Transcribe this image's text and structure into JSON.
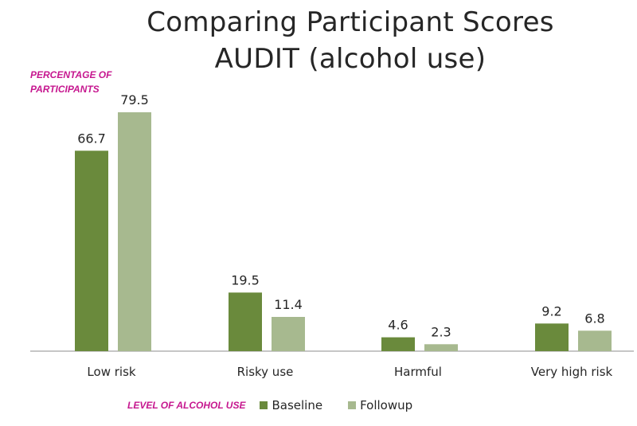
{
  "chart_data": {
    "type": "bar",
    "title_line1": "Comparing Participant Scores",
    "title_line2": "AUDIT (alcohol use)",
    "ylabel": "PERCENTAGE OF PARTICIPANTS",
    "xlabel": "LEVEL OF ALCOHOL USE",
    "categories": [
      "Low risk",
      "Risky use",
      "Harmful",
      "Very high risk"
    ],
    "series": [
      {
        "name": "Baseline",
        "color": "#6a8a3c",
        "values": [
          66.7,
          19.5,
          4.6,
          9.2
        ],
        "labels": [
          "66.7",
          "19.5",
          "4.6",
          "9.2"
        ]
      },
      {
        "name": "Followup",
        "color": "#a7b98f",
        "values": [
          79.5,
          11.4,
          2.3,
          6.8
        ],
        "labels": [
          "79.5",
          "11.4",
          "2.3",
          "6.8"
        ]
      }
    ],
    "ylim": [
      0,
      100
    ],
    "grid": false,
    "legend_position": "bottom"
  }
}
